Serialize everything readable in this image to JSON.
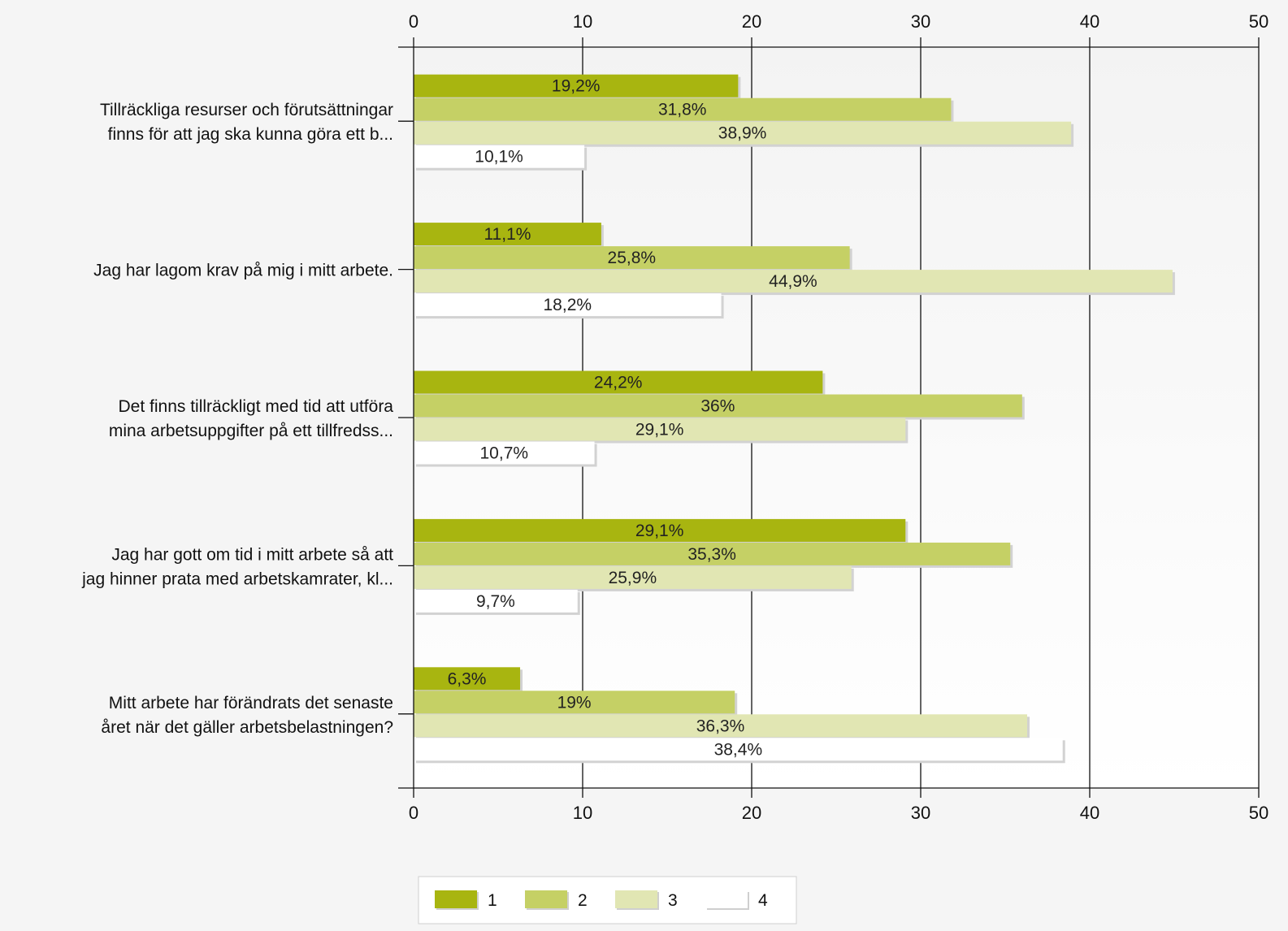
{
  "chart_data": {
    "type": "bar",
    "orientation": "horizontal",
    "xlim": [
      0,
      50
    ],
    "ticks": [
      "0",
      "10",
      "20",
      "30",
      "40",
      "50"
    ],
    "grid": true,
    "legend_position": "bottom",
    "categories": [
      [
        "Tillräckliga resurser och förutsättningar",
        "finns för att jag ska kunna göra ett b..."
      ],
      [
        "Jag har lagom krav på mig i mitt arbete."
      ],
      [
        "Det finns tillräckligt med tid att utföra",
        "mina arbetsuppgifter på ett tillfredss..."
      ],
      [
        "Jag har gott om tid i mitt arbete så att",
        "jag hinner prata med arbetskamrater, kl..."
      ],
      [
        "Mitt arbete har  förändrats det senaste",
        "året när det gäller arbetsbelastningen?"
      ]
    ],
    "series": [
      {
        "name": "1",
        "color": "#a8b510",
        "values": [
          19.2,
          11.1,
          24.2,
          29.1,
          6.3
        ],
        "labels": [
          "19,2%",
          "11,1%",
          "24,2%",
          "29,1%",
          "6,3%"
        ]
      },
      {
        "name": "2",
        "color": "#c5d065",
        "values": [
          31.8,
          25.8,
          36,
          35.3,
          19
        ],
        "labels": [
          "31,8%",
          "25,8%",
          "36%",
          "35,3%",
          "19%"
        ]
      },
      {
        "name": "3",
        "color": "#e1e6b3",
        "values": [
          38.9,
          44.9,
          29.1,
          25.9,
          36.3
        ],
        "labels": [
          "38,9%",
          "44,9%",
          "29,1%",
          "25,9%",
          "36,3%"
        ]
      },
      {
        "name": "4",
        "color": "#ffffff",
        "values": [
          10.1,
          18.2,
          10.7,
          9.7,
          38.4
        ],
        "labels": [
          "10,1%",
          "18,2%",
          "10,7%",
          "9,7%",
          "38,4%"
        ]
      }
    ]
  }
}
